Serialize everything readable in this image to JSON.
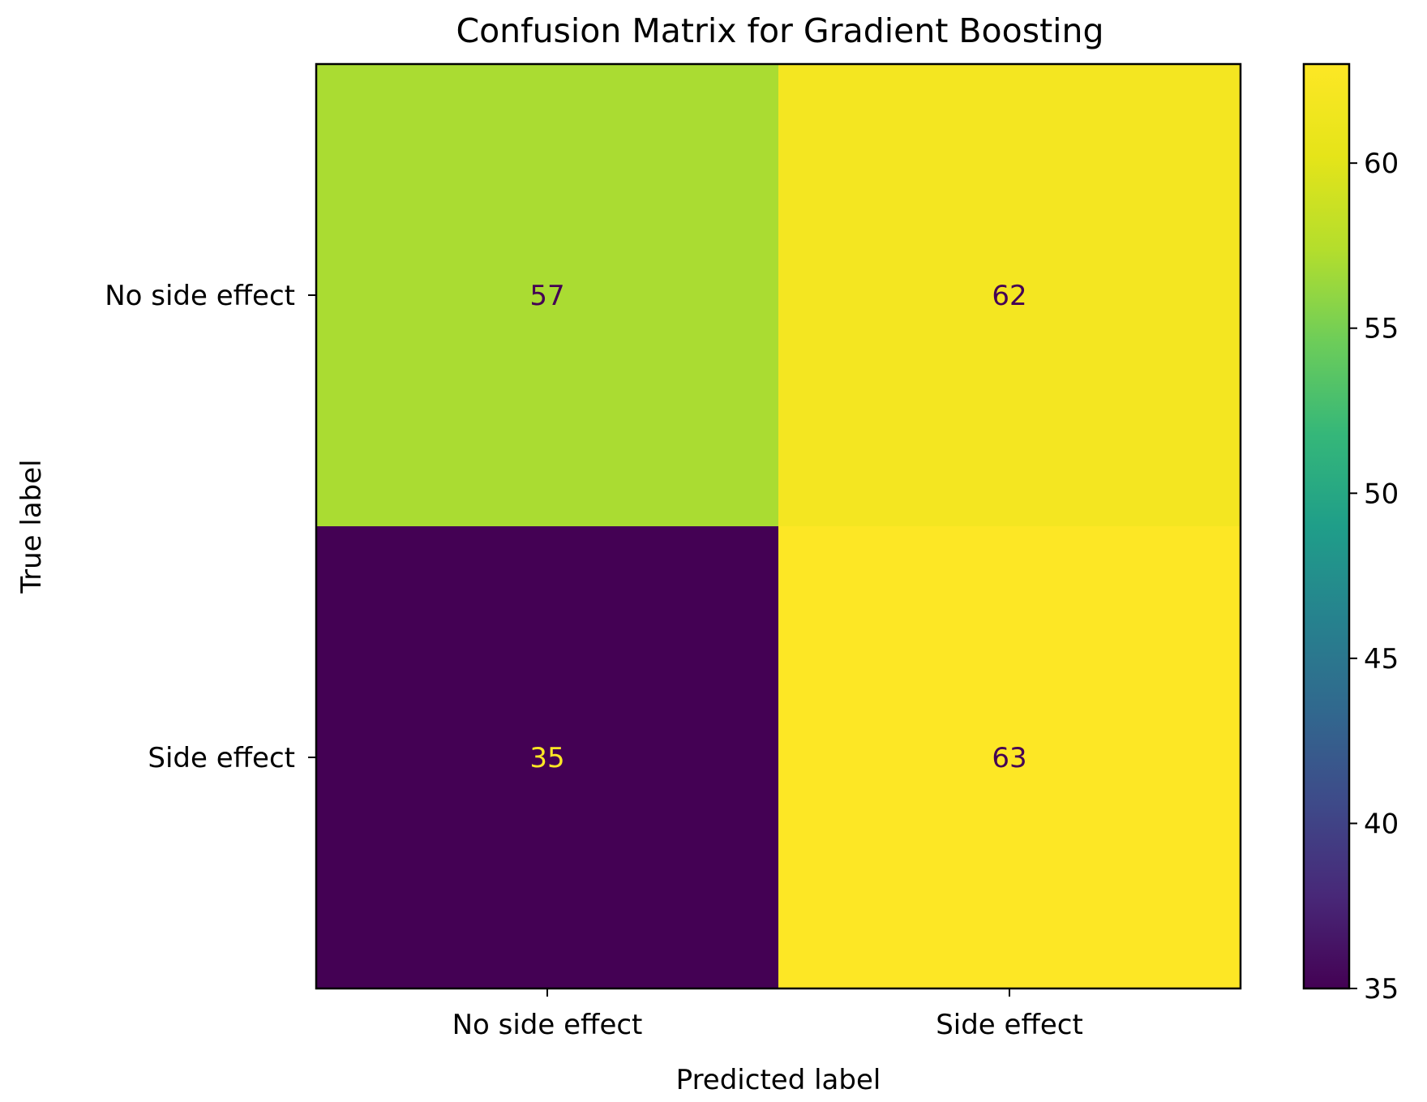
{
  "chart_data": {
    "type": "heatmap",
    "title": "Confusion Matrix for Gradient Boosting",
    "xlabel": "Predicted label",
    "ylabel": "True label",
    "x_categories": [
      "No side effect",
      "Side effect"
    ],
    "y_categories": [
      "No side effect",
      "Side effect"
    ],
    "values": [
      [
        57,
        62
      ],
      [
        35,
        63
      ]
    ],
    "colormap": "viridis",
    "colorbar": {
      "range": [
        35,
        63
      ],
      "ticks": [
        35,
        40,
        45,
        50,
        55,
        60
      ],
      "tick_labels": [
        "35",
        "40",
        "45",
        "50",
        "55",
        "60"
      ]
    },
    "grid": false
  }
}
